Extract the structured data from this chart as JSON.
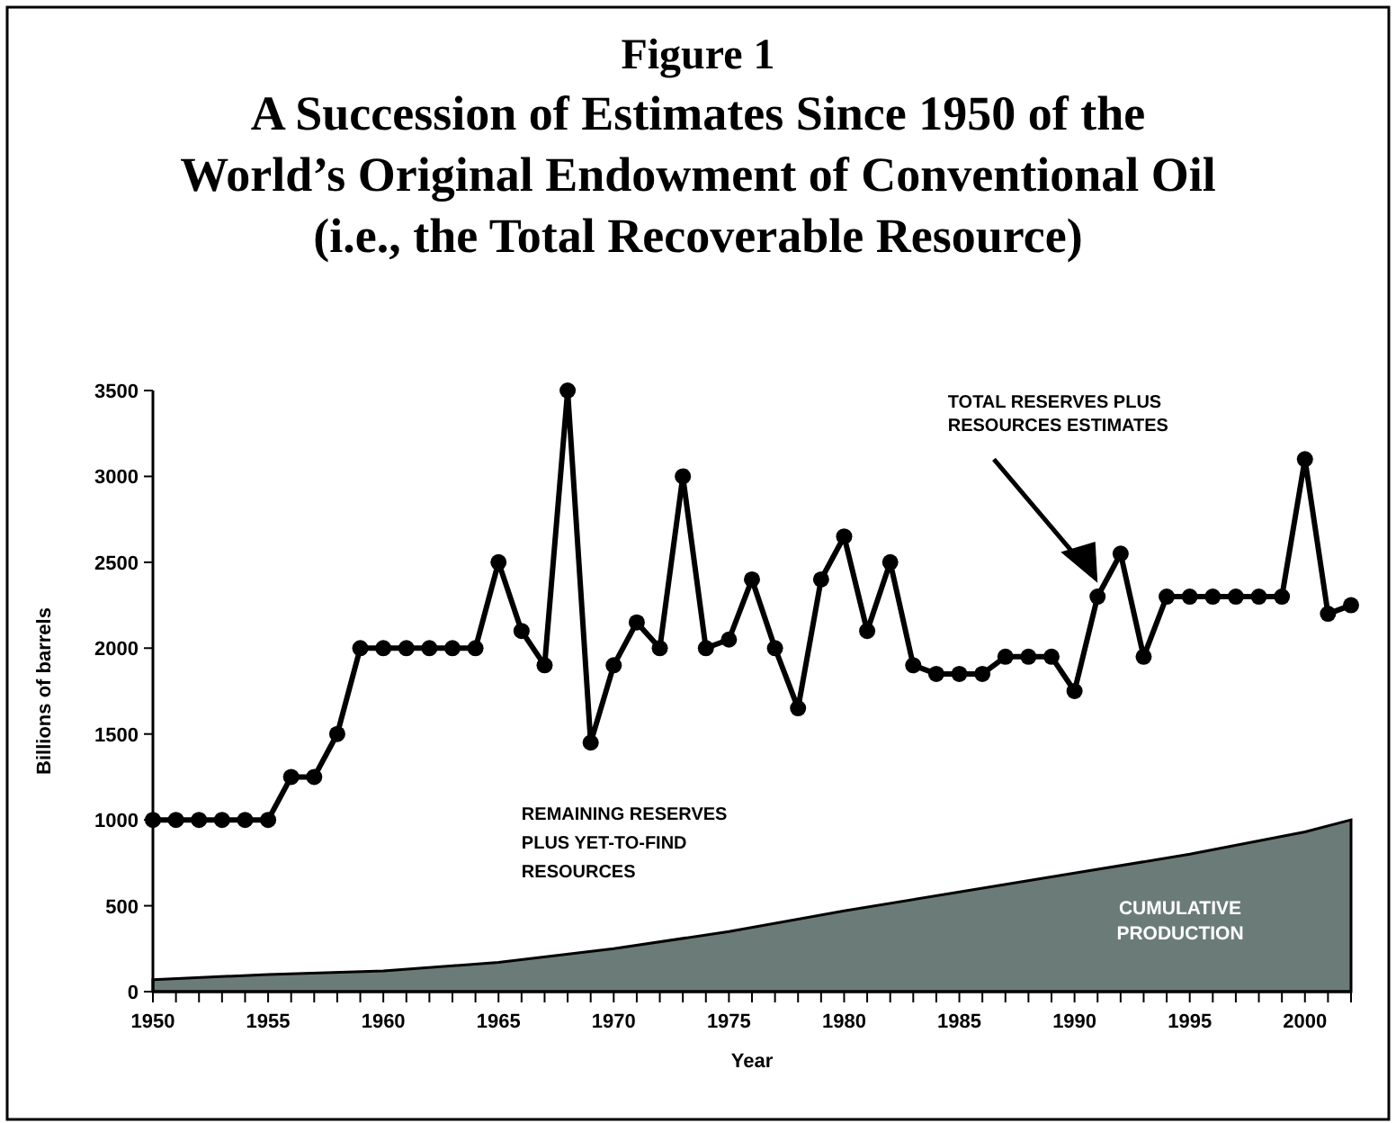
{
  "chart_data": {
    "type": "line",
    "title": "Figure 1",
    "subtitle": "A Succession of Estimates Since 1950 of the\nWorld’s Original Endowment of Conventional Oil\n(i.e., the Total Recoverable Resource)",
    "xlabel": "Year",
    "ylabel": "Billions of barrels",
    "xlim": [
      1950,
      2002
    ],
    "ylim": [
      0,
      3500
    ],
    "xticks": [
      1950,
      {
        "value": 1951,
        "label": null
      },
      {
        "value": 1952,
        "label": null
      },
      {
        "value": 1953,
        "label": null
      },
      {
        "value": 1954,
        "label": null
      },
      1955,
      {
        "value": 1956,
        "label": null
      },
      {
        "value": 1957,
        "label": null
      },
      {
        "value": 1958,
        "label": null
      },
      {
        "value": 1959,
        "label": null
      },
      1960,
      {
        "value": 1961,
        "label": null
      },
      {
        "value": 1962,
        "label": null
      },
      {
        "value": 1963,
        "label": null
      },
      {
        "value": 1964,
        "label": null
      },
      1965,
      {
        "value": 1966,
        "label": null
      },
      {
        "value": 1967,
        "label": null
      },
      {
        "value": 1968,
        "label": null
      },
      {
        "value": 1969,
        "label": null
      },
      1970,
      {
        "value": 1971,
        "label": null
      },
      {
        "value": 1972,
        "label": null
      },
      {
        "value": 1973,
        "label": null
      },
      {
        "value": 1974,
        "label": null
      },
      1975,
      {
        "value": 1976,
        "label": null
      },
      {
        "value": 1977,
        "label": null
      },
      {
        "value": 1978,
        "label": null
      },
      {
        "value": 1979,
        "label": null
      },
      1980,
      {
        "value": 1981,
        "label": null
      },
      {
        "value": 1982,
        "label": null
      },
      {
        "value": 1983,
        "label": null
      },
      {
        "value": 1984,
        "label": null
      },
      1985,
      {
        "value": 1986,
        "label": null
      },
      {
        "value": 1987,
        "label": null
      },
      {
        "value": 1988,
        "label": null
      },
      {
        "value": 1989,
        "label": null
      },
      1990,
      {
        "value": 1991,
        "label": null
      },
      {
        "value": 1992,
        "label": null
      },
      {
        "value": 1993,
        "label": null
      },
      {
        "value": 1994,
        "label": null
      },
      1995,
      {
        "value": 1996,
        "label": null
      },
      {
        "value": 1997,
        "label": null
      },
      {
        "value": 1998,
        "label": null
      },
      {
        "value": 1999,
        "label": null
      },
      2000,
      {
        "value": 2001,
        "label": null
      },
      {
        "value": 2002,
        "label": null
      }
    ],
    "yticks": [
      0,
      500,
      1000,
      1500,
      2000,
      2500,
      3000,
      3500
    ],
    "grid": false,
    "series": [
      {
        "name": "CUMULATIVE PRODUCTION",
        "type": "area",
        "color": "#6b7b78",
        "x": [
          1950,
          1955,
          1960,
          1965,
          1970,
          1975,
          1980,
          1985,
          1990,
          1995,
          2000,
          2002
        ],
        "values": [
          70,
          100,
          120,
          170,
          250,
          350,
          470,
          580,
          690,
          800,
          930,
          1000
        ]
      },
      {
        "color": "#000000",
        "marker": "circle",
        "line_style": "solid",
        "x": [
          1950,
          1951,
          1952,
          1953,
          1954,
          1955,
          1956,
          1957,
          1958,
          1959,
          1960,
          1961,
          1962,
          1963,
          1964,
          1965,
          1966,
          1967,
          1968,
          1969,
          1970,
          1971,
          1972,
          1973,
          1974,
          1975,
          1976,
          1977,
          1978,
          1979,
          1980,
          1981,
          1982,
          1983,
          1984,
          1985,
          1986,
          1987,
          1988,
          1989,
          1990,
          1991,
          1992,
          1993,
          1994,
          1995,
          1996,
          1997,
          1998,
          1999,
          2000,
          2001,
          2002
        ],
        "values": [
          1000,
          1000,
          1000,
          1000,
          1000,
          1000,
          1250,
          1250,
          1500,
          2000,
          2000,
          2000,
          2000,
          2000,
          2000,
          2500,
          2100,
          1900,
          3500,
          1450,
          1900,
          2150,
          2000,
          3000,
          2000,
          2050,
          2400,
          2000,
          1650,
          2400,
          2650,
          2100,
          2500,
          1900,
          1850,
          1850,
          1850,
          1950,
          1950,
          1950,
          1750,
          2300,
          2550,
          1950,
          2300,
          2300,
          2300,
          2300,
          2300,
          2300,
          3100,
          2200,
          2250
        ]
      }
    ],
    "annotations": [
      "REMAINING RESERVES\nPLUS YET-TO-FIND\nRESOURCES",
      "TOTAL RESERVES PLUS\nRESOURCES ESTIMATES"
    ]
  }
}
